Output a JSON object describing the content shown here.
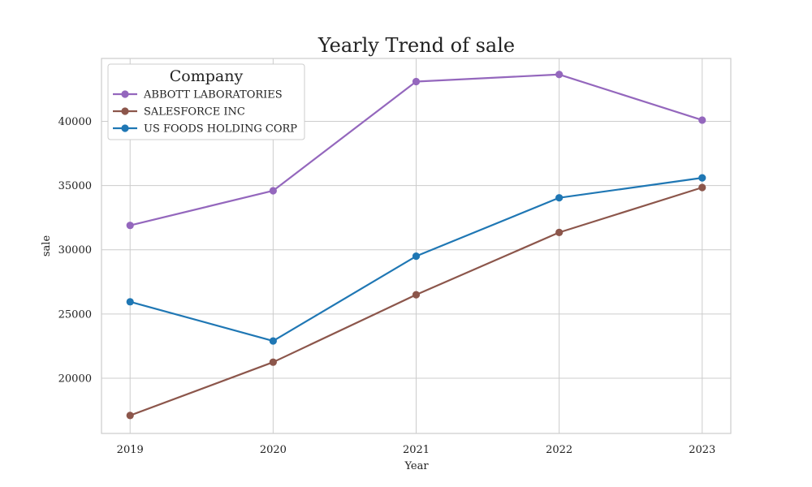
{
  "chart_data": {
    "type": "line",
    "title": "Yearly Trend of sale",
    "xlabel": "Year",
    "ylabel": "sale",
    "x": [
      2019,
      2020,
      2021,
      2022,
      2023
    ],
    "xlim": [
      2018.8,
      2023.2
    ],
    "ylim": [
      15700,
      44900
    ],
    "yticks": [
      20000,
      25000,
      30000,
      35000,
      40000
    ],
    "grid": true,
    "legend": {
      "title": "Company",
      "placement": "top-left"
    },
    "series": [
      {
        "name": "ABBOTT LABORATORIES",
        "color": "#9467bd",
        "values": [
          31900,
          34600,
          43100,
          43650,
          40100
        ]
      },
      {
        "name": "SALESFORCE INC",
        "color": "#8c564b",
        "values": [
          17100,
          21250,
          26500,
          31350,
          34850
        ]
      },
      {
        "name": "US FOODS HOLDING CORP",
        "color": "#1f77b4",
        "values": [
          25950,
          22900,
          29500,
          34050,
          35600
        ]
      }
    ]
  }
}
